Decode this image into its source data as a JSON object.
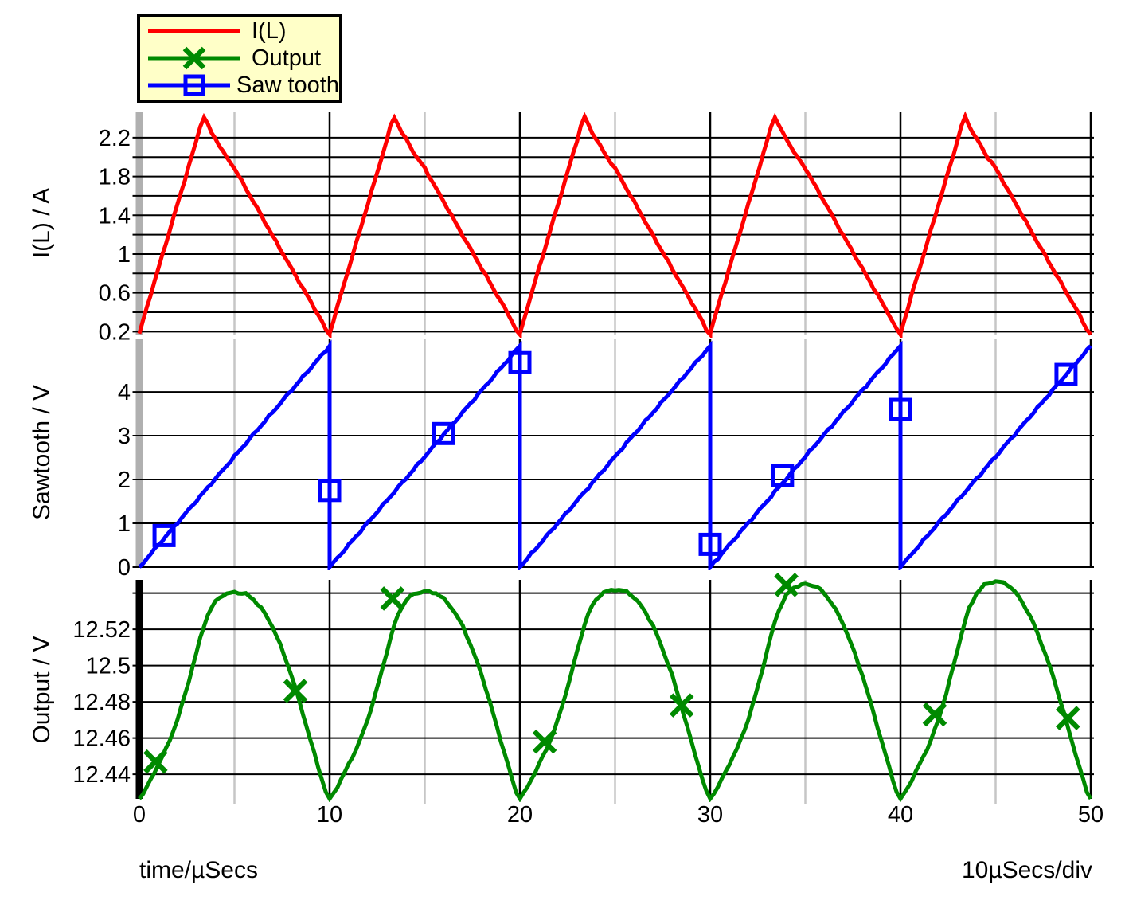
{
  "colors": {
    "background": "#ffffff",
    "text": "#000000"
  },
  "legend": {
    "bg": "#ffffc8",
    "border": "#000000",
    "items": [
      {
        "label": "I(L)",
        "color": "#ff0000",
        "marker": "none"
      },
      {
        "label": "Output",
        "color": "#008a00",
        "marker": "x"
      },
      {
        "label": "Saw tooth",
        "color": "#0000ff",
        "marker": "square"
      }
    ]
  },
  "x_axis": {
    "label_left": "time/µSecs",
    "label_right": "10µSecs/div",
    "range_us": [
      0,
      50
    ],
    "major_ticks": [
      0,
      10,
      20,
      30,
      40,
      50
    ],
    "minor_ticks": [
      5,
      15,
      25,
      35,
      45
    ],
    "major_grid_color": "#000000",
    "minor_grid_color": "#c6c6c6"
  },
  "chart_data": [
    {
      "id": "il",
      "type": "line",
      "name": "I(L)",
      "ylabel": "I(L) / A",
      "color": "#ff0000",
      "axis_bar_color": "#b0b0b0",
      "ylim": [
        0.17,
        2.47
      ],
      "yticks": [
        {
          "v": 0.2,
          "label": "0.2"
        },
        {
          "v": 0.4,
          "label": ""
        },
        {
          "v": 0.6,
          "label": "0.6"
        },
        {
          "v": 0.8,
          "label": ""
        },
        {
          "v": 1.0,
          "label": "1"
        },
        {
          "v": 1.2,
          "label": ""
        },
        {
          "v": 1.4,
          "label": "1.4"
        },
        {
          "v": 1.6,
          "label": ""
        },
        {
          "v": 1.8,
          "label": "1.8"
        },
        {
          "v": 2.0,
          "label": ""
        },
        {
          "v": 2.2,
          "label": "2.2"
        }
      ],
      "waveform": {
        "kind": "periodic-keypoints",
        "period_us": 10,
        "periods": 5,
        "keypoints": [
          [
            0,
            0.18
          ],
          [
            0.05,
            0.52
          ],
          [
            0.1,
            0.85
          ],
          [
            0.15,
            1.18
          ],
          [
            0.2,
            1.51
          ],
          [
            0.25,
            1.84
          ],
          [
            0.3,
            2.17
          ],
          [
            0.335,
            2.43
          ],
          [
            0.355,
            2.36
          ],
          [
            0.37,
            2.28
          ],
          [
            0.4,
            2.19
          ],
          [
            0.45,
            2.02
          ],
          [
            0.5,
            1.885
          ],
          [
            0.55,
            1.71
          ],
          [
            0.6,
            1.54
          ],
          [
            0.65,
            1.365
          ],
          [
            0.7,
            1.19
          ],
          [
            0.75,
            1.02
          ],
          [
            0.8,
            0.85
          ],
          [
            0.85,
            0.68
          ],
          [
            0.9,
            0.51
          ],
          [
            0.95,
            0.34
          ],
          [
            0.985,
            0.2
          ],
          [
            1,
            0.17
          ]
        ]
      },
      "markers": [],
      "marker_shape": "none"
    },
    {
      "id": "sawtooth",
      "type": "line",
      "name": "Saw tooth",
      "ylabel": "Sawtooth / V",
      "color": "#0000ff",
      "axis_bar_color": "#b0b0b0",
      "ylim": [
        0,
        5.22
      ],
      "yticks": [
        {
          "v": 0,
          "label": "0"
        },
        {
          "v": 1,
          "label": "1"
        },
        {
          "v": 2,
          "label": "2"
        },
        {
          "v": 3,
          "label": "3"
        },
        {
          "v": 4,
          "label": "4"
        }
      ],
      "waveform": {
        "kind": "sawtooth",
        "period_us": 10,
        "periods": 5,
        "min": 0,
        "max": 5.05
      },
      "markers": [
        [
          1.3,
          0.72
        ],
        [
          10,
          1.75
        ],
        [
          16,
          3.05
        ],
        [
          20,
          4.67
        ],
        [
          30,
          0.52
        ],
        [
          33.8,
          2.1
        ],
        [
          40,
          3.6
        ],
        [
          48.7,
          4.4
        ]
      ],
      "marker_shape": "square"
    },
    {
      "id": "output",
      "type": "line",
      "name": "Output",
      "ylabel": "Output / V",
      "color": "#008a00",
      "axis_bar_color": "#000000",
      "ylim": [
        12.4264,
        12.5473
      ],
      "yticks": [
        {
          "v": 12.44,
          "label": "12.44"
        },
        {
          "v": 12.46,
          "label": "12.46"
        },
        {
          "v": 12.48,
          "label": "12.48"
        },
        {
          "v": 12.5,
          "label": "12.5"
        },
        {
          "v": 12.52,
          "label": "12.52"
        },
        {
          "v": 12.54,
          "label": ""
        }
      ],
      "waveform": {
        "kind": "periodic-keypoints",
        "period_us": 10,
        "periods": 5,
        "peak_boost": [
          0,
          0.0005,
          0.0015,
          0.0045,
          0.006
        ],
        "keypoints": [
          [
            0,
            12.4265
          ],
          [
            0.03,
            12.431
          ],
          [
            0.07,
            12.439
          ],
          [
            0.1,
            12.4455
          ],
          [
            0.15,
            12.456
          ],
          [
            0.2,
            12.47
          ],
          [
            0.25,
            12.4875
          ],
          [
            0.3,
            12.507
          ],
          [
            0.33,
            12.519
          ],
          [
            0.36,
            12.528
          ],
          [
            0.4,
            12.5355
          ],
          [
            0.44,
            12.539
          ],
          [
            0.5,
            12.5405
          ],
          [
            0.56,
            12.5395
          ],
          [
            0.6,
            12.5365
          ],
          [
            0.65,
            12.5305
          ],
          [
            0.7,
            12.5215
          ],
          [
            0.75,
            12.509
          ],
          [
            0.8,
            12.4945
          ],
          [
            0.85,
            12.477
          ],
          [
            0.9,
            12.4585
          ],
          [
            0.95,
            12.4405
          ],
          [
            0.985,
            12.4285
          ],
          [
            1,
            12.4265
          ]
        ]
      },
      "markers": [
        [
          0.85,
          12.447
        ],
        [
          8.2,
          12.486
        ],
        [
          13.3,
          12.537
        ],
        [
          21.3,
          12.458
        ],
        [
          28.5,
          12.478
        ],
        [
          34,
          12.5445
        ],
        [
          41.8,
          12.473
        ],
        [
          48.8,
          12.471
        ]
      ],
      "marker_shape": "x"
    }
  ]
}
